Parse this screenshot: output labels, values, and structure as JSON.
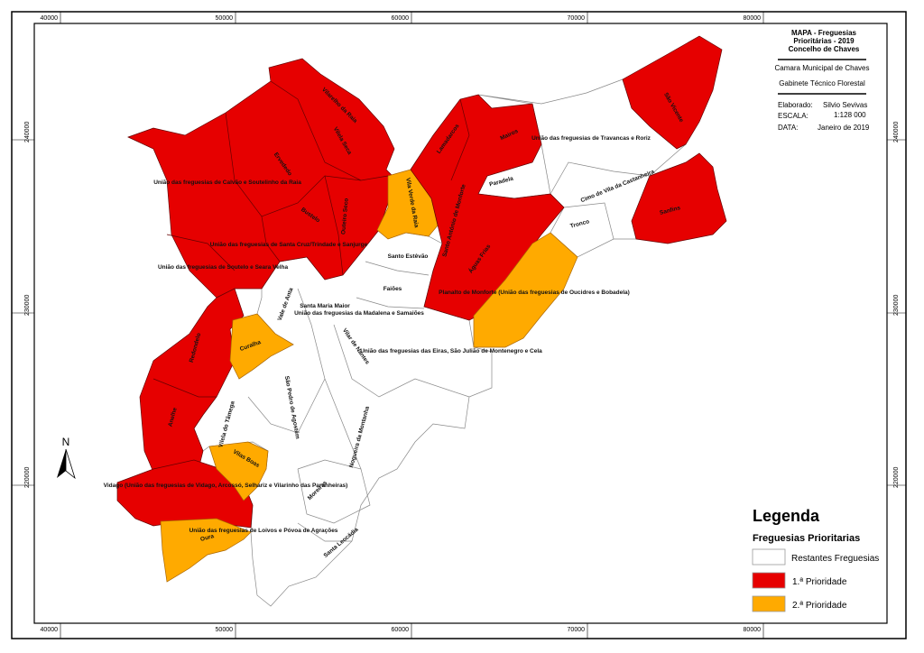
{
  "title_block": {
    "title_lines": [
      "MAPA  - Freguesias",
      "Prioritárias - 2019",
      "Concelho de Chaves"
    ],
    "org1": "Camara Municipal de Chaves",
    "org2": "Gabinete Técnico Florestal",
    "elaborado_label": "Elaborado:",
    "elaborado_value": "Silvio Sevivas",
    "escala_label": "ESCALA:",
    "escala_value": "1:128 000",
    "data_label": "DATA:",
    "data_value": "Janeiro de 2019"
  },
  "axes": {
    "x_ticks": [
      "40000",
      "50000",
      "60000",
      "70000",
      "80000"
    ],
    "y_ticks": [
      "240000",
      "230000",
      "220000"
    ]
  },
  "north_label": "N",
  "legend": {
    "title": "Legenda",
    "subtitle": "Freguesias Prioritarias",
    "items": [
      {
        "label": "Restantes Freguesias",
        "color": "#ffffff"
      },
      {
        "label": "1.ª Prioridade",
        "color": "#e60000"
      },
      {
        "label": "2.ª Prioridade",
        "color": "#ffaa00"
      }
    ]
  },
  "colors": {
    "priority1": "#e60000",
    "priority2": "#ffaa00",
    "other": "#ffffff"
  },
  "labels": [
    "Vilarelho da Raia",
    "Vilela Seca",
    "Ervededo",
    "União das freguesias de Calvão e Soutelinho da Raia",
    "Bustelo",
    "Outeiro Seco",
    "União das freguesias de Santa Cruz/Trindade e Sanjurge",
    "União das freguesias de Soutelo e Seara Velha",
    "Vila Verde da Raia",
    "Lamadarcos",
    "Mairos",
    "União das freguesias de Travancas e Roriz",
    "São Vicente",
    "Paradela",
    "Santo António de Monforte",
    "Cimo de Vila da Castanheira",
    "Sanfins",
    "Tronco",
    "Santo Estêvão",
    "Águas Frias",
    "Faiões",
    "Planalto de Monforte (União das freguesias de Oucidres e Bobadela)",
    "Vale de Anta",
    "Santa Maria Maior",
    "União das freguesias da Madalena e Samaiões",
    "Redondelo",
    "Curalha",
    "Vilar de Nantes",
    "União das freguesias das Eiras, São Julião de Montenegro e Cela",
    "Anelhe",
    "Vilela do Tâmega",
    "São Pedro de Agostém",
    "Nogueira da Montanha",
    "Vilas Boas",
    "Vidago (União das freguesias de Vidago, Arcossó, Selhariz e Vilarinho das Paranheiras)",
    "Moreiras",
    "União das freguesias de Loivos e Póvoa de Agrações",
    "Oura",
    "Santa Leocádia"
  ]
}
